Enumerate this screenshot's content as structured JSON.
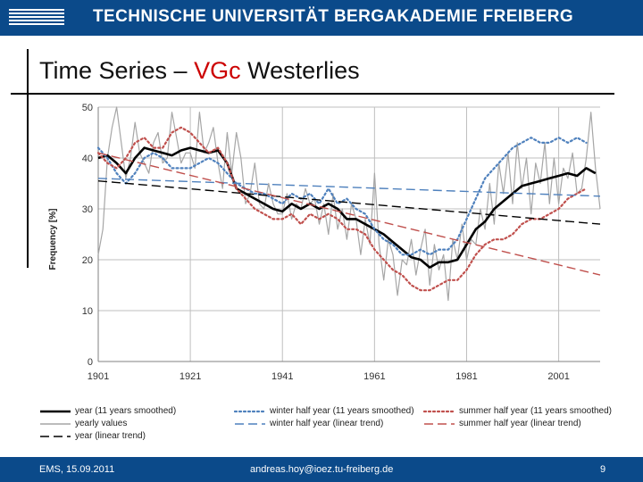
{
  "header": {
    "university": "TECHNISCHE UNIVERSITÄT BERGAKADEMIE FREIBERG"
  },
  "slide": {
    "title_prefix": "Time Series – ",
    "title_highlight": "VGc",
    "title_suffix": " Westerlies"
  },
  "footer": {
    "left": "EMS, 15.09.2011",
    "center": "andreas.hoy@ioez.tu-freiberg.de",
    "right": "9"
  },
  "colors": {
    "brand_blue": "#0b4a8a",
    "yearly": "#a6a6a6",
    "winter": "#4f81bd",
    "summer": "#c0504d",
    "smoothed": "#000000"
  },
  "chart_data": {
    "type": "line",
    "ylabel": "Frequency [%]",
    "xlabel": "",
    "title": "",
    "ylim": [
      0,
      50
    ],
    "xlim": [
      1901,
      2010
    ],
    "yticks": [
      0,
      10,
      20,
      30,
      40,
      50
    ],
    "xticks": [
      1901,
      1921,
      1941,
      1961,
      1981,
      2001
    ],
    "grid": true,
    "legend_position": "bottom",
    "legend": [
      {
        "key": "year_smooth",
        "label": "year (11 years smoothed)"
      },
      {
        "key": "yearly",
        "label": "yearly values"
      },
      {
        "key": "year_trend",
        "label": "year (linear trend)"
      },
      {
        "key": "winter_smooth",
        "label": "winter half year (11 years smoothed)"
      },
      {
        "key": "winter_trend",
        "label": "winter half year (linear trend)"
      },
      {
        "key": "summer_smooth",
        "label": "summer half year (11 years smoothed)"
      },
      {
        "key": "summer_trend",
        "label": "summer half year (linear trend)"
      }
    ],
    "series": [
      {
        "key": "yearly",
        "style": "solid",
        "color": "#a6a6a6",
        "width": 1.2,
        "x": [
          1901,
          1902,
          1903,
          1904,
          1905,
          1906,
          1907,
          1908,
          1909,
          1910,
          1911,
          1912,
          1913,
          1914,
          1915,
          1916,
          1917,
          1918,
          1919,
          1920,
          1921,
          1922,
          1923,
          1924,
          1925,
          1926,
          1927,
          1928,
          1929,
          1930,
          1931,
          1932,
          1933,
          1934,
          1935,
          1936,
          1937,
          1938,
          1939,
          1940,
          1941,
          1942,
          1943,
          1944,
          1945,
          1946,
          1947,
          1948,
          1949,
          1950,
          1951,
          1952,
          1953,
          1954,
          1955,
          1956,
          1957,
          1958,
          1959,
          1960,
          1961,
          1962,
          1963,
          1964,
          1965,
          1966,
          1967,
          1968,
          1969,
          1970,
          1971,
          1972,
          1973,
          1974,
          1975,
          1976,
          1977,
          1978,
          1979,
          1980,
          1981,
          1982,
          1983,
          1984,
          1985,
          1986,
          1987,
          1988,
          1989,
          1990,
          1991,
          1992,
          1993,
          1994,
          1995,
          1996,
          1997,
          1998,
          1999,
          2000,
          2001,
          2002,
          2003,
          2004,
          2005,
          2006,
          2007,
          2008,
          2009,
          2010
        ],
        "y": [
          21,
          26,
          40,
          46,
          50,
          43,
          36,
          40,
          47,
          41,
          39,
          37,
          43,
          45,
          39,
          40,
          49,
          44,
          39,
          41,
          41,
          38,
          49,
          41,
          43,
          46,
          39,
          34,
          45,
          37,
          45,
          40,
          31,
          33,
          39,
          31,
          30,
          35,
          31,
          29,
          29,
          33,
          28,
          31,
          30,
          34,
          31,
          32,
          27,
          31,
          25,
          33,
          26,
          30,
          24,
          31,
          28,
          21,
          28,
          23,
          37,
          23,
          16,
          24,
          21,
          13,
          20,
          19,
          24,
          17,
          22,
          26,
          15,
          23,
          18,
          21,
          12,
          24,
          20,
          27,
          20,
          24,
          23,
          30,
          26,
          35,
          27,
          39,
          33,
          41,
          31,
          43,
          34,
          40,
          29,
          39,
          35,
          43,
          31,
          40,
          31,
          38,
          36,
          41,
          33,
          34,
          40,
          49,
          38,
          30
        ]
      },
      {
        "key": "year_smooth",
        "style": "solid",
        "color": "#000000",
        "width": 2.6,
        "x": [
          1901,
          1903,
          1905,
          1907,
          1909,
          1911,
          1913,
          1915,
          1917,
          1919,
          1921,
          1923,
          1925,
          1927,
          1929,
          1931,
          1933,
          1935,
          1937,
          1939,
          1941,
          1943,
          1945,
          1947,
          1949,
          1951,
          1953,
          1955,
          1957,
          1959,
          1961,
          1963,
          1965,
          1967,
          1969,
          1971,
          1973,
          1975,
          1977,
          1979,
          1981,
          1983,
          1985,
          1987,
          1989,
          1991,
          1993,
          1995,
          1997,
          1999,
          2001,
          2003,
          2005,
          2007,
          2009
        ],
        "y": [
          40,
          40.5,
          39,
          37,
          40,
          42,
          41.5,
          41,
          40.5,
          41.5,
          42,
          41.5,
          41,
          41.5,
          39,
          34,
          33,
          32,
          31,
          30,
          29.5,
          31,
          30,
          31,
          30,
          31,
          30,
          28,
          28,
          27,
          26,
          25,
          23.5,
          22,
          20.5,
          20,
          18.5,
          19.5,
          19.5,
          20,
          23,
          26,
          27.5,
          30,
          31.5,
          33,
          34.5,
          35,
          35.5,
          36,
          36.5,
          37,
          36.5,
          38,
          37
        ]
      },
      {
        "key": "winter_smooth",
        "style": "dotted",
        "color": "#4f81bd",
        "width": 2.2,
        "x": [
          1901,
          1903,
          1905,
          1907,
          1909,
          1911,
          1913,
          1915,
          1917,
          1919,
          1921,
          1923,
          1925,
          1927,
          1929,
          1931,
          1933,
          1935,
          1937,
          1939,
          1941,
          1943,
          1945,
          1947,
          1949,
          1951,
          1953,
          1955,
          1957,
          1959,
          1961,
          1963,
          1965,
          1967,
          1969,
          1971,
          1973,
          1975,
          1977,
          1979,
          1981,
          1983,
          1985,
          1987,
          1989,
          1991,
          1993,
          1995,
          1997,
          1999,
          2001,
          2003,
          2005,
          2007
        ],
        "y": [
          42,
          40,
          37,
          35,
          37,
          40,
          41,
          40,
          38,
          38,
          38,
          39,
          40,
          39,
          37,
          35,
          34,
          33,
          33,
          32,
          31,
          33,
          32,
          33,
          31,
          34,
          31,
          32,
          30,
          29,
          26,
          24,
          23,
          21,
          21,
          22,
          21,
          22,
          22,
          24,
          28,
          32,
          36,
          38,
          40,
          42,
          43,
          44,
          43,
          43,
          44,
          43,
          44,
          43
        ]
      },
      {
        "key": "summer_smooth",
        "style": "dotted",
        "color": "#c0504d",
        "width": 2.2,
        "x": [
          1901,
          1903,
          1905,
          1907,
          1909,
          1911,
          1913,
          1915,
          1917,
          1919,
          1921,
          1923,
          1925,
          1927,
          1929,
          1931,
          1933,
          1935,
          1937,
          1939,
          1941,
          1943,
          1945,
          1947,
          1949,
          1951,
          1953,
          1955,
          1957,
          1959,
          1961,
          1963,
          1965,
          1967,
          1969,
          1971,
          1973,
          1975,
          1977,
          1979,
          1981,
          1983,
          1985,
          1987,
          1989,
          1991,
          1993,
          1995,
          1997,
          1999,
          2001,
          2003,
          2005,
          2007
        ],
        "y": [
          41,
          39,
          38,
          40,
          43,
          44,
          42,
          42,
          45,
          46,
          45,
          43,
          41,
          42,
          39,
          34,
          32,
          30,
          29,
          28,
          28,
          29,
          27,
          29,
          28,
          29,
          28,
          26,
          26,
          25,
          22,
          20,
          18,
          17,
          15,
          14,
          14,
          15,
          16,
          16,
          18,
          21,
          23,
          24,
          24,
          25,
          27,
          28,
          28,
          29,
          30,
          32,
          33,
          34
        ]
      },
      {
        "key": "year_trend",
        "style": "dashed",
        "color": "#000000",
        "width": 1.4,
        "x": [
          1901,
          2010
        ],
        "y": [
          35.5,
          27
        ]
      },
      {
        "key": "winter_trend",
        "style": "dashed",
        "color": "#4f81bd",
        "width": 1.4,
        "x": [
          1901,
          2010
        ],
        "y": [
          36,
          32.5
        ]
      },
      {
        "key": "summer_trend",
        "style": "dashed",
        "color": "#c0504d",
        "width": 1.4,
        "x": [
          1901,
          2010
        ],
        "y": [
          41,
          17
        ]
      }
    ]
  }
}
